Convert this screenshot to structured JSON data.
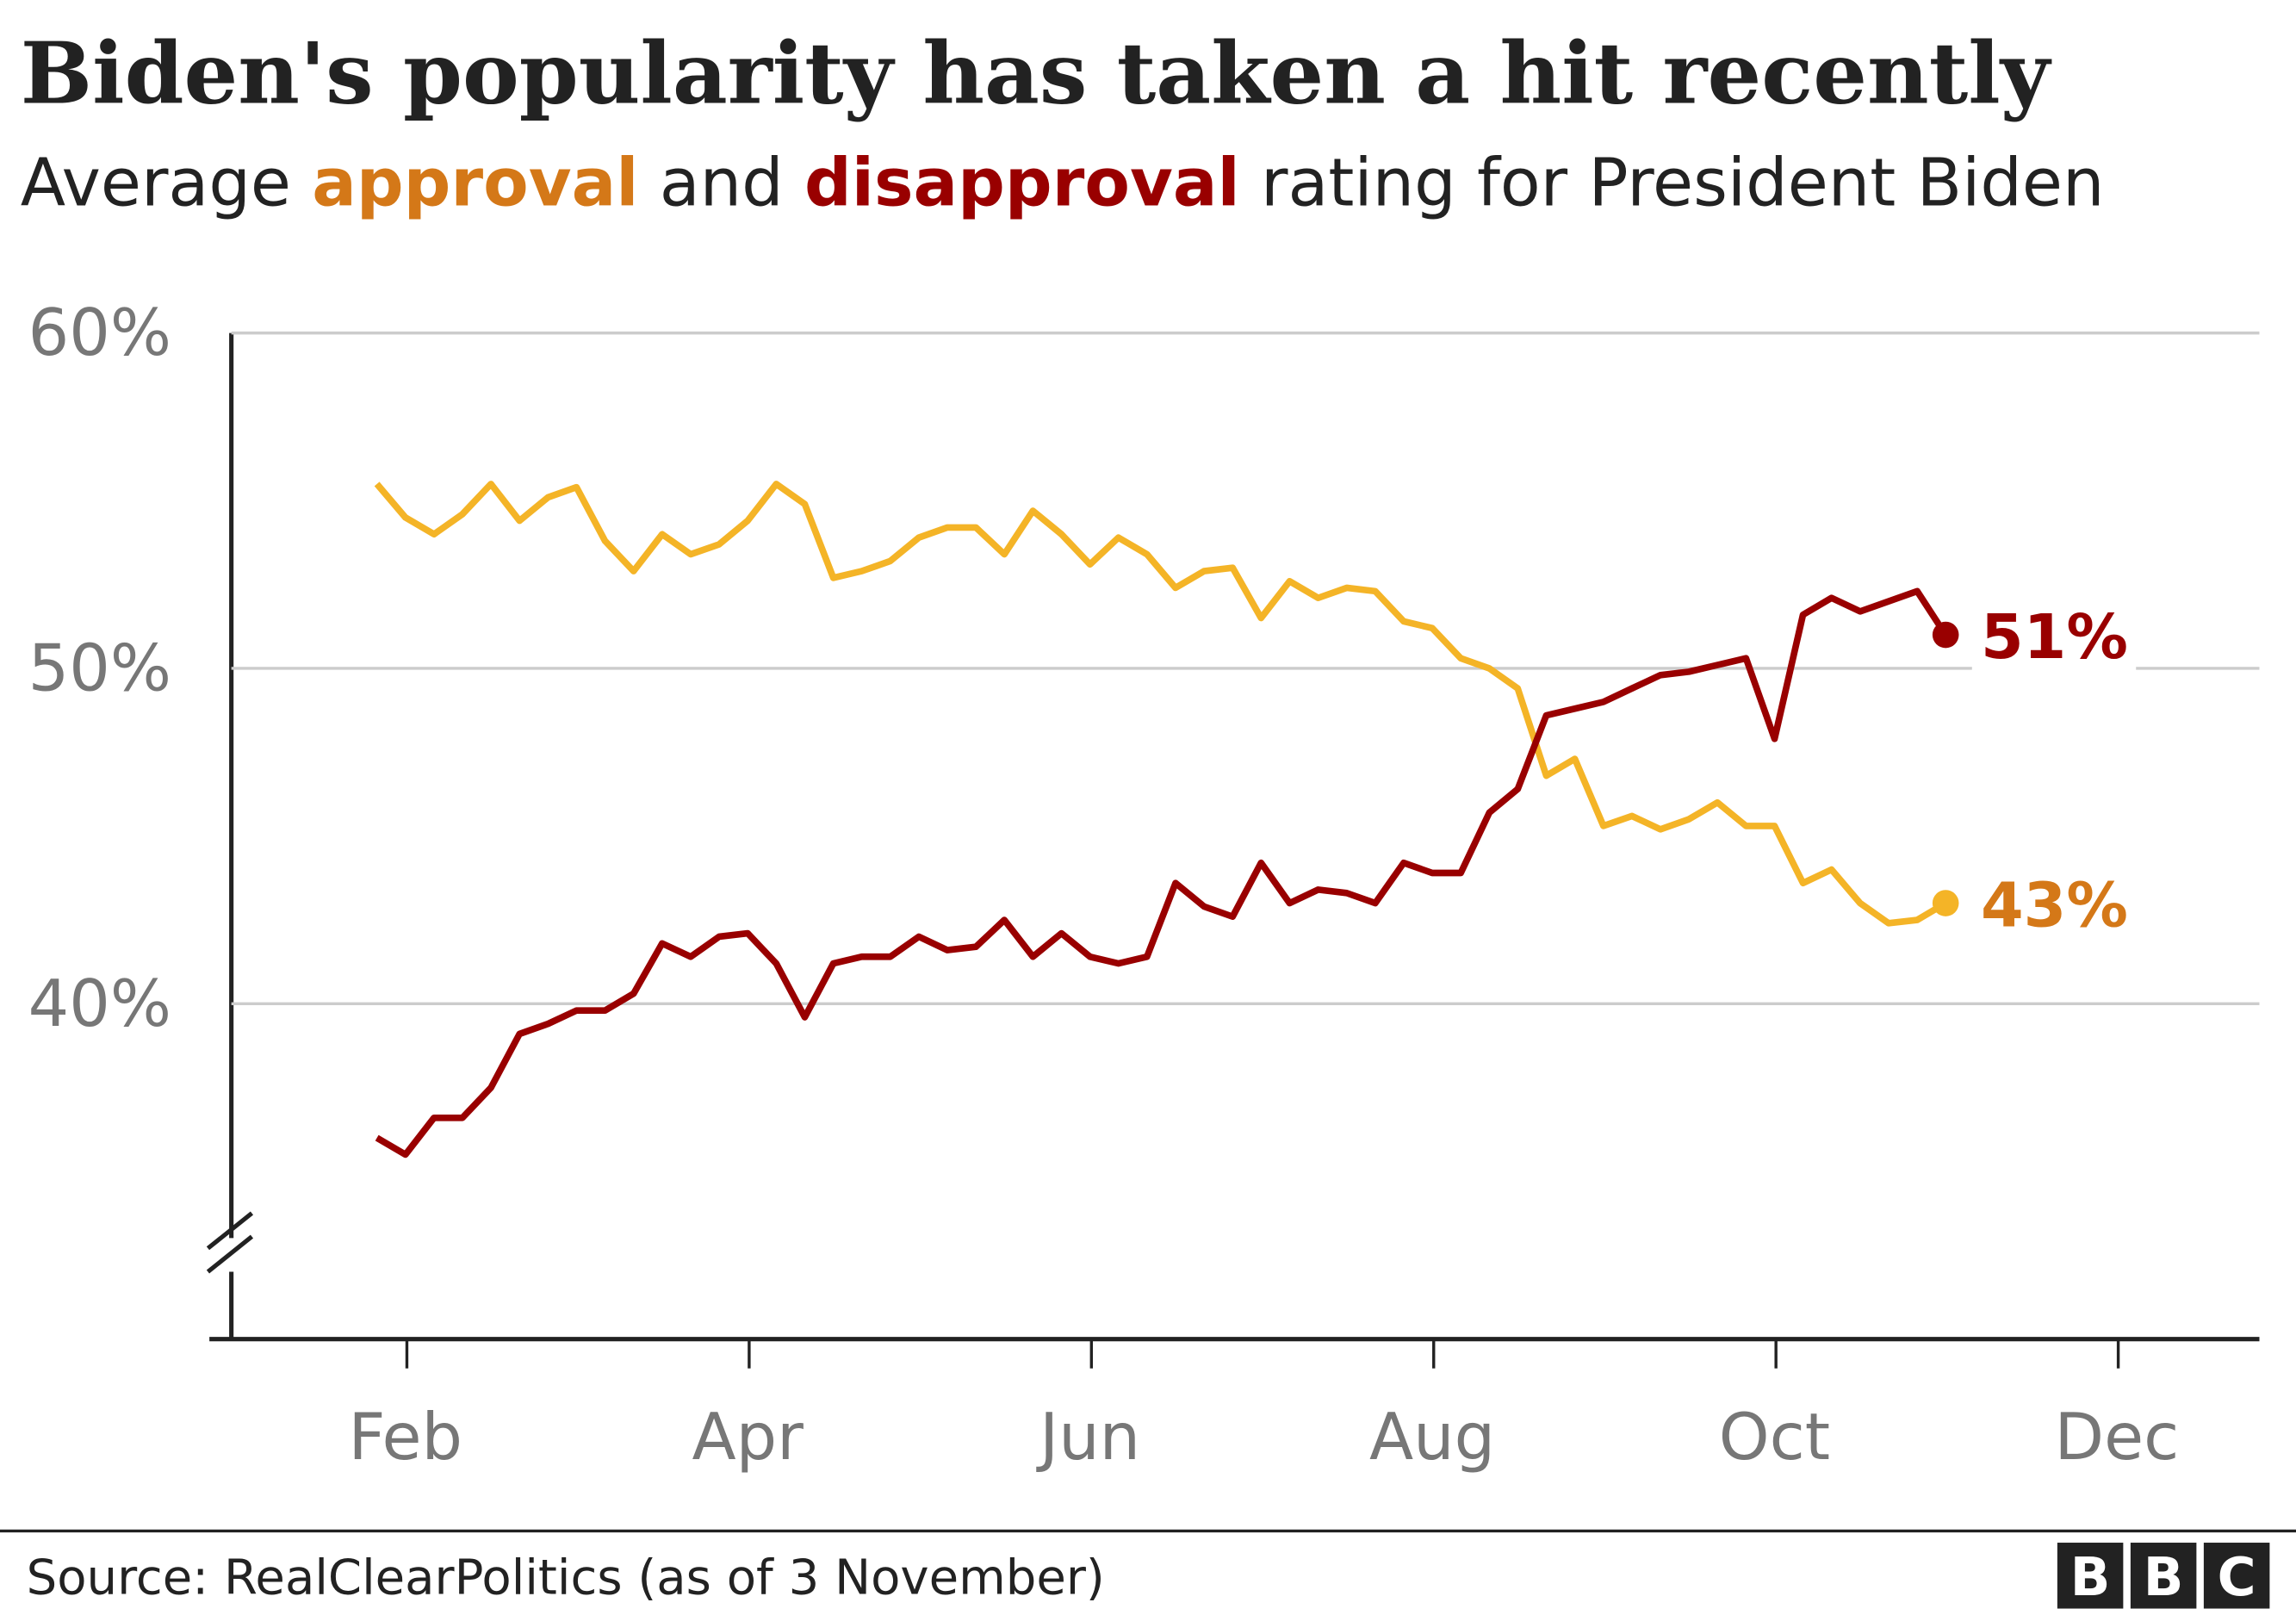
{
  "chart_data": {
    "type": "line",
    "title": "Biden's popularity has taken a hit recently",
    "subtitle": [
      "Average",
      "and",
      "rating for President Biden"
    ],
    "source": "Source: RealClearPolitics (as of 3 November)",
    "logo": [
      "B",
      "B",
      "C"
    ],
    "categories": [
      null,
      null,
      null,
      null,
      null,
      null,
      "Feb",
      null,
      null,
      null,
      null,
      null,
      null,
      null,
      null,
      null,
      null,
      null,
      "Apr",
      null,
      null,
      null,
      null,
      null,
      null,
      null,
      null,
      null,
      null,
      null,
      "Jun",
      null,
      null,
      null,
      null,
      null,
      null,
      null,
      null,
      null,
      null,
      null,
      "Aug",
      null,
      null,
      null,
      null,
      null,
      null,
      null,
      null,
      null,
      null,
      null,
      "Oct",
      null,
      null,
      null,
      null,
      null,
      null,
      null,
      null,
      null,
      null,
      null,
      "Dec",
      null,
      null,
      null,
      null,
      null
    ],
    "series": [
      {
        "name": "approval",
        "color": "#f4b427",
        "label_color": "#d47818",
        "values": [
          null,
          null,
          null,
          null,
          null,
          55.5,
          54.5,
          54.0,
          54.6,
          55.5,
          54.4,
          55.1,
          55.4,
          53.8,
          52.9,
          54.0,
          53.4,
          53.7,
          54.4,
          55.5,
          54.9,
          52.7,
          52.9,
          53.2,
          53.9,
          54.2,
          54.2,
          53.4,
          54.7,
          54.0,
          53.1,
          53.9,
          53.4,
          52.4,
          52.9,
          53.0,
          51.5,
          52.6,
          52.1,
          52.4,
          52.3,
          51.4,
          51.2,
          50.3,
          50.0,
          49.4,
          46.8,
          47.3,
          45.3,
          45.6,
          45.2,
          45.5,
          46.0,
          45.3,
          45.3,
          43.6,
          44.0,
          43.0,
          42.4,
          42.5,
          43.0,
          null,
          null,
          null,
          null,
          null,
          null,
          null,
          null,
          null,
          null,
          null
        ],
        "value_labels": [
          null,
          null,
          null,
          null,
          null,
          null,
          null,
          null,
          null,
          null,
          null,
          null,
          null,
          null,
          null,
          null,
          null,
          null,
          null,
          null,
          null,
          null,
          null,
          null,
          null,
          null,
          null,
          null,
          null,
          null,
          null,
          null,
          null,
          null,
          null,
          null,
          null,
          null,
          null,
          null,
          null,
          null,
          null,
          null,
          null,
          null,
          null,
          null,
          null,
          null,
          null,
          null,
          null,
          null,
          null,
          null,
          null,
          null,
          null,
          null,
          "43%",
          null,
          null,
          null,
          null,
          null,
          null,
          null,
          null,
          null,
          null,
          null
        ]
      },
      {
        "name": "disapproval",
        "color": "#990000",
        "label_color": "#990000",
        "values": [
          null,
          null,
          null,
          null,
          null,
          36.0,
          35.5,
          36.6,
          36.6,
          37.5,
          39.1,
          39.4,
          39.8,
          39.8,
          40.3,
          41.8,
          41.4,
          42.0,
          42.1,
          41.2,
          39.6,
          41.2,
          41.4,
          41.4,
          42.0,
          41.6,
          41.7,
          42.5,
          41.4,
          42.1,
          41.4,
          41.2,
          41.4,
          43.6,
          42.9,
          42.6,
          44.2,
          43.0,
          43.4,
          43.3,
          43.0,
          44.2,
          43.9,
          43.9,
          45.7,
          46.4,
          48.6,
          48.8,
          49.0,
          49.4,
          49.8,
          49.9,
          50.1,
          50.3,
          47.9,
          51.6,
          52.1,
          51.7,
          52.0,
          52.3,
          51.0,
          null,
          null,
          null,
          null,
          null,
          null,
          null,
          null,
          null,
          null,
          null
        ],
        "value_labels": [
          null,
          null,
          null,
          null,
          null,
          null,
          null,
          null,
          null,
          null,
          null,
          null,
          null,
          null,
          null,
          null,
          null,
          null,
          null,
          null,
          null,
          null,
          null,
          null,
          null,
          null,
          null,
          null,
          null,
          null,
          null,
          null,
          null,
          null,
          null,
          null,
          null,
          null,
          null,
          null,
          null,
          null,
          null,
          null,
          null,
          null,
          null,
          null,
          null,
          null,
          null,
          null,
          null,
          null,
          null,
          null,
          null,
          null,
          null,
          null,
          "51%",
          null,
          null,
          null,
          null,
          null,
          null,
          null,
          null,
          null,
          null,
          null
        ]
      }
    ],
    "ylim": [
      30,
      60
    ],
    "yticks": [
      {
        "value": 40,
        "label": "40%"
      },
      {
        "value": 50,
        "label": "50%"
      },
      {
        "value": 60,
        "label": "60%"
      }
    ],
    "grid": true
  }
}
